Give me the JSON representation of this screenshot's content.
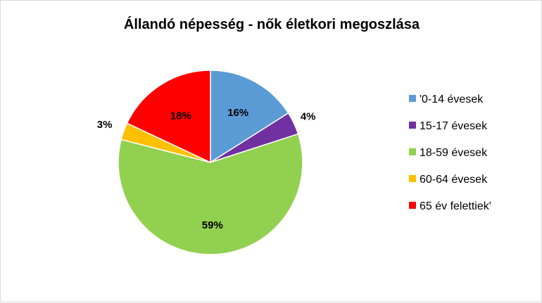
{
  "chart_data": {
    "type": "pie",
    "title": "Állandó népesség - nők életkori megoszlása",
    "legend_position": "right",
    "slices": [
      {
        "label": "'0-14 évesek",
        "value": 16,
        "display": "16%",
        "color": "#5B9BD5"
      },
      {
        "label": "15-17 évesek",
        "value": 4,
        "display": "4%",
        "color": "#7030A0"
      },
      {
        "label": "18-59 évesek",
        "value": 59,
        "display": "59%",
        "color": "#92D050"
      },
      {
        "label": "60-64 évesek",
        "value": 3,
        "display": "3%",
        "color": "#FFC000"
      },
      {
        "label": "65 év felettiek'",
        "value": 18,
        "display": "18%",
        "color": "#FF0000"
      }
    ]
  }
}
